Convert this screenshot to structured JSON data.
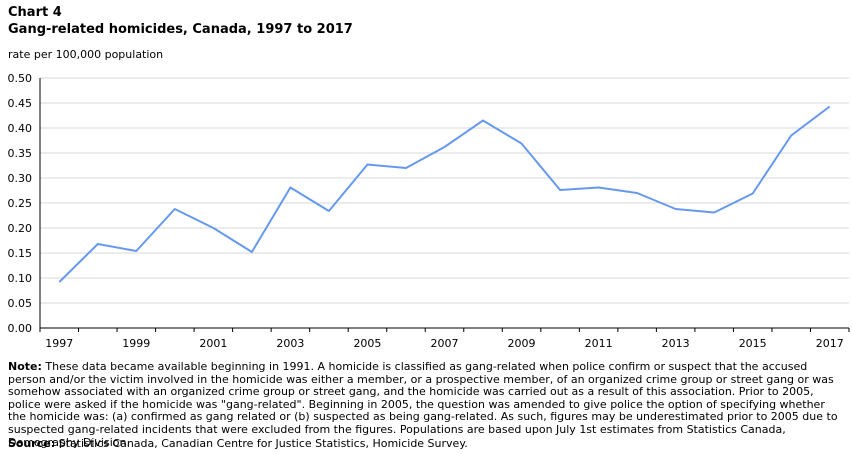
{
  "header": {
    "chart_label": "Chart 4",
    "title": "Gang-related homicides, Canada, 1997 to 2017",
    "y_unit": "rate per 100,000 population"
  },
  "chart_data": {
    "type": "line",
    "title": "Gang-related homicides, Canada, 1997 to 2017",
    "xlabel": "",
    "ylabel": "rate per 100,000 population",
    "ylim": [
      0,
      0.5
    ],
    "y_ticks": [
      "0.00",
      "0.05",
      "0.10",
      "0.15",
      "0.20",
      "0.25",
      "0.30",
      "0.35",
      "0.40",
      "0.45",
      "0.50"
    ],
    "x_tick_labels": [
      "1997",
      "1999",
      "2001",
      "2003",
      "2005",
      "2007",
      "2009",
      "2011",
      "2013",
      "2015",
      "2017"
    ],
    "grid": "horizontal",
    "x": [
      1997,
      1998,
      1999,
      2000,
      2001,
      2002,
      2003,
      2004,
      2005,
      2006,
      2007,
      2008,
      2009,
      2010,
      2011,
      2012,
      2013,
      2014,
      2015,
      2016,
      2017
    ],
    "series": [
      {
        "values": [
          0.092,
          0.168,
          0.154,
          0.238,
          0.2,
          0.152,
          0.281,
          0.234,
          0.327,
          0.32,
          0.362,
          0.415,
          0.369,
          0.276,
          0.281,
          0.27,
          0.238,
          0.231,
          0.269,
          0.385,
          0.443
        ],
        "color": "#6699ee"
      }
    ]
  },
  "footer": {
    "note_label": "Note:",
    "note_text": " These data became available beginning in 1991. A homicide is classified as gang-related when police confirm or suspect that the accused person and/or the victim involved in the homicide was either a member, or a prospective member, of an organized crime group or street gang or was somehow associated with an organized crime group or street gang, and the homicide was carried out as a result of this association. Prior to 2005, police were asked if the homicide was \"gang-related\". Beginning in 2005, the question was amended to give police the option of specifying whether the homicide was: (a) confirmed as gang related or (b) suspected as being gang-related. As such, figures may be underestimated prior to 2005 due to suspected gang-related incidents that were excluded from the figures. Populations are based upon July 1st estimates from Statistics Canada, Demography Division.",
    "source_label": "Source:",
    "source_text": " Statistics Canada, Canadian Centre for Justice Statistics, Homicide Survey."
  }
}
